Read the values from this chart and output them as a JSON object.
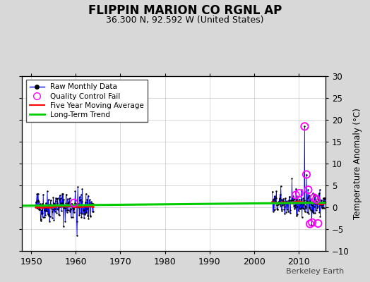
{
  "title": "FLIPPIN MARION CO RGNL AP",
  "subtitle": "36.300 N, 92.592 W (United States)",
  "watermark": "Berkeley Earth",
  "xlim": [
    1948,
    2016
  ],
  "ylim": [
    -10,
    30
  ],
  "yticks": [
    -10,
    -5,
    0,
    5,
    10,
    15,
    20,
    25,
    30
  ],
  "xticks": [
    1950,
    1960,
    1970,
    1980,
    1990,
    2000,
    2010
  ],
  "ylabel": "Temperature Anomaly (°C)",
  "bg_color": "#d8d8d8",
  "plot_bg_color": "#ffffff",
  "raw_color": "#0000ff",
  "raw_dot_color": "#000000",
  "qc_color": "#ff00ff",
  "five_yr_color": "#ff0000",
  "trend_color": "#00cc00",
  "trend_x": [
    1948,
    2016
  ],
  "trend_y": [
    0.35,
    1.05
  ],
  "group1_start": 1951,
  "group1_end": 1963,
  "group2_start": 2004,
  "group2_end": 2015,
  "seed": 42
}
